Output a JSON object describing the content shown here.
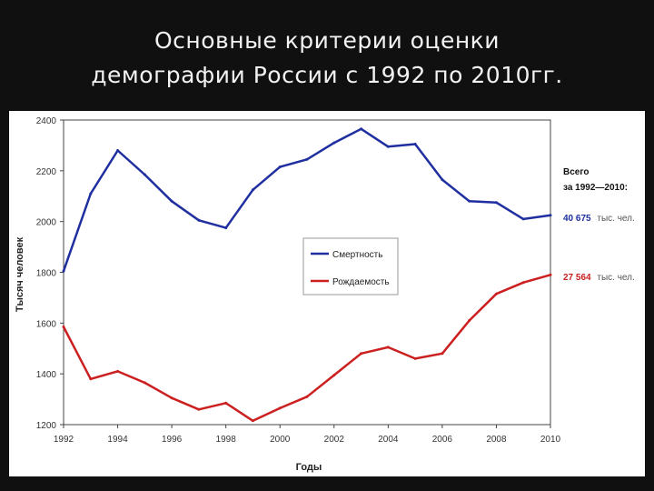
{
  "slide": {
    "title_line1": "Основные критерии оценки",
    "title_line2": "демографии России  с 1992 по 2010гг."
  },
  "chart_data": {
    "type": "line",
    "title": "",
    "xlabel": "Годы",
    "ylabel": "Тысяч человек",
    "xlim": [
      1992,
      2010
    ],
    "ylim": [
      1200,
      2400
    ],
    "x_ticks": [
      "1992",
      "1994",
      "1996",
      "1998",
      "2000",
      "2002",
      "2004",
      "2006",
      "2008",
      "2010"
    ],
    "y_ticks": [
      "1200",
      "1400",
      "1600",
      "1800",
      "2000",
      "2200",
      "2400"
    ],
    "grid": false,
    "x": [
      1992,
      1993,
      1994,
      1995,
      1996,
      1997,
      1998,
      1999,
      2000,
      2001,
      2002,
      2003,
      2004,
      2005,
      2006,
      2007,
      2008,
      2009,
      2010
    ],
    "series": [
      {
        "name": "Смертность",
        "color": "#1f2fa0",
        "values": [
          1805,
          2110,
          2280,
          2185,
          2080,
          2005,
          1975,
          2125,
          2215,
          2245,
          2310,
          2365,
          2295,
          2305,
          2165,
          2080,
          2075,
          2010,
          2025
        ]
      },
      {
        "name": "Рождаемость",
        "color": "#cc2020",
        "values": [
          1585,
          1380,
          1410,
          1365,
          1305,
          1260,
          1285,
          1215,
          1265,
          1310,
          1395,
          1480,
          1505,
          1460,
          1480,
          1610,
          1715,
          1760,
          1790
        ]
      }
    ],
    "legend_position": "center-right",
    "annotations": {
      "total_header": "Всего",
      "period": "за 1992—2010:",
      "mortality_total_value": "40 675",
      "births_total_value": "27 564",
      "unit": "тыс. чел."
    }
  }
}
